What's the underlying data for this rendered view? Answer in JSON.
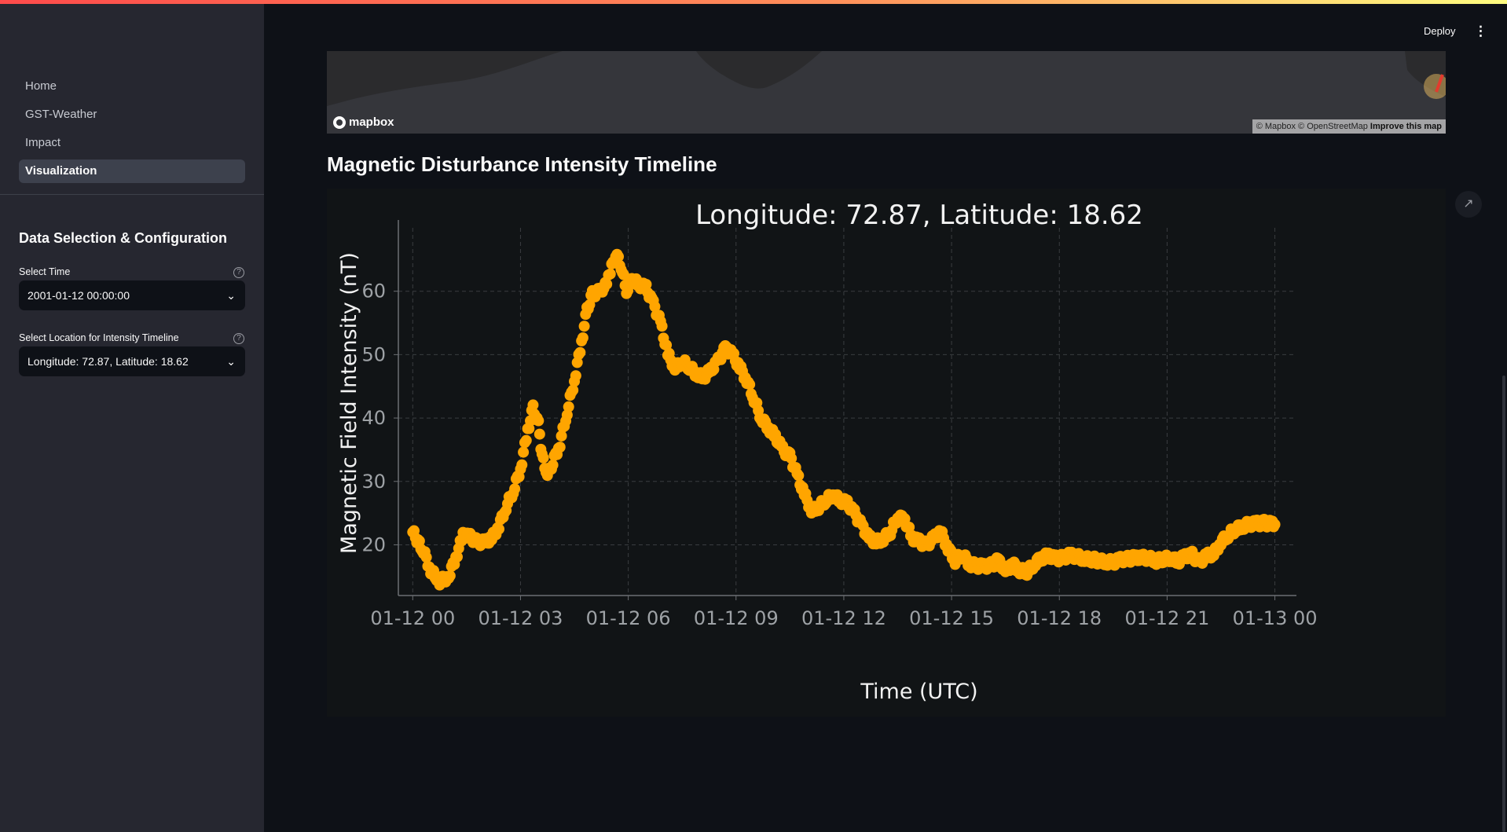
{
  "header": {
    "deploy_label": "Deploy",
    "menu_icon": "kebab-menu-icon"
  },
  "sidebar": {
    "nav_items": [
      {
        "label": "Home",
        "active": false
      },
      {
        "label": "GST-Weather",
        "active": false
      },
      {
        "label": "Impact",
        "active": false
      },
      {
        "label": "Visualization",
        "active": true
      }
    ],
    "section_title": "Data Selection & Configuration",
    "time_select": {
      "label": "Select Time",
      "value": "2001-01-12 00:00:00"
    },
    "location_select": {
      "label": "Select Location for Intensity Timeline",
      "value": "Longitude: 72.87, Latitude: 18.62"
    }
  },
  "map": {
    "logo_text": "mapbox",
    "attribution": "© Mapbox © OpenStreetMap",
    "improve_link": "Improve this map"
  },
  "main": {
    "section_title": "Magnetic Disturbance Intensity Timeline"
  },
  "chart_data": {
    "type": "scatter",
    "title": "Longitude: 72.87, Latitude: 18.62",
    "xlabel": "Time (UTC)",
    "ylabel": "Magnetic Field Intensity (nT)",
    "xlim": [
      -0.4,
      24.6
    ],
    "ylim": [
      12,
      70
    ],
    "grid": true,
    "color": "#ffa500",
    "x_ticks": [
      0,
      3,
      6,
      9,
      12,
      15,
      18,
      21,
      24
    ],
    "x_tick_labels": [
      "01-12 00",
      "01-12 03",
      "01-12 06",
      "01-12 09",
      "01-12 12",
      "01-12 15",
      "01-12 18",
      "01-12 21",
      "01-13 00"
    ],
    "y_ticks": [
      20,
      30,
      40,
      50,
      60
    ],
    "y_tick_labels": [
      "20",
      "30",
      "40",
      "50",
      "60"
    ],
    "series_hours": [
      0,
      0.3,
      0.5,
      0.75,
      1,
      1.2,
      1.4,
      1.6,
      1.8,
      2.0,
      2.2,
      2.4,
      2.6,
      2.8,
      3.0,
      3.2,
      3.35,
      3.5,
      3.6,
      3.75,
      3.9,
      4.1,
      4.3,
      4.5,
      4.7,
      4.85,
      5.0,
      5.2,
      5.4,
      5.5,
      5.65,
      5.8,
      5.95,
      6.1,
      6.3,
      6.5,
      6.7,
      6.9,
      7.1,
      7.3,
      7.5,
      7.7,
      7.9,
      8.1,
      8.3,
      8.5,
      8.7,
      8.9,
      9.1,
      9.3,
      9.5,
      9.7,
      9.9,
      10.1,
      10.3,
      10.5,
      10.7,
      10.9,
      11.1,
      11.3,
      11.5,
      11.7,
      11.9,
      12.1,
      12.3,
      12.5,
      12.7,
      12.9,
      13.1,
      13.3,
      13.5,
      13.7,
      13.9,
      14.1,
      14.3,
      14.5,
      14.7,
      14.9,
      15.1,
      15.3,
      15.5,
      15.7,
      15.9,
      16.1,
      16.3,
      16.5,
      16.7,
      16.9,
      17.1,
      17.3,
      17.5,
      17.7,
      17.9,
      18.1,
      18.3,
      18.5,
      18.7,
      18.9,
      19.1,
      19.3,
      19.5,
      19.7,
      19.9,
      20.1,
      20.3,
      20.5,
      20.7,
      20.9,
      21.1,
      21.3,
      21.5,
      21.7,
      21.9,
      22.1,
      22.3,
      22.5,
      22.7,
      22.9,
      23.1,
      23.3,
      23.5,
      23.7,
      23.9,
      24.0
    ],
    "series_values": [
      22,
      19,
      16,
      14.2,
      15,
      18,
      21.5,
      21.2,
      20.5,
      20.3,
      21,
      23,
      26,
      28.5,
      32,
      38,
      41.5,
      39,
      34,
      31,
      33,
      36,
      41,
      46,
      52,
      57,
      59.5,
      60,
      61,
      63,
      66,
      64,
      60,
      62,
      61,
      60.5,
      58,
      55,
      50,
      48,
      49,
      48,
      47,
      46.5,
      47.5,
      49,
      51,
      50,
      48,
      46,
      43,
      40,
      38.5,
      37,
      35,
      34,
      31,
      28,
      25.5,
      26,
      27,
      28,
      27,
      26.5,
      25,
      23,
      21,
      20.5,
      21,
      22,
      24.5,
      24,
      21,
      20.5,
      20,
      21,
      22,
      19.5,
      17.5,
      18.5,
      17,
      16.7,
      16.5,
      16.8,
      17.5,
      15.8,
      17,
      16,
      15.7,
      17,
      18,
      18.2,
      17.8,
      18,
      18.3,
      18.1,
      17.9,
      17.7,
      17.5,
      17.4,
      17.2,
      17.6,
      17.8,
      17.9,
      17.9,
      18,
      17.5,
      17.7,
      18,
      17.4,
      18.1,
      18.4,
      17.2,
      18.2,
      18.6,
      20.5,
      21.5,
      22.5,
      23,
      23.2,
      23.3,
      23.5,
      23.2,
      23.2
    ]
  }
}
